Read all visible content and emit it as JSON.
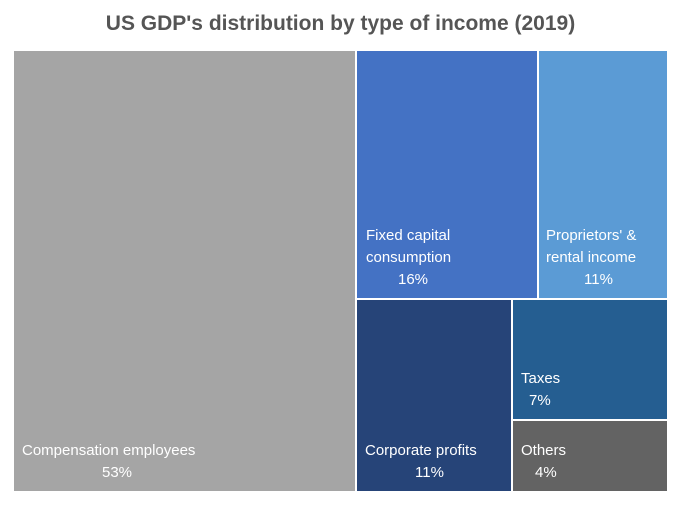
{
  "chart_data": {
    "type": "treemap",
    "title": "US GDP's distribution by type of income (2019)",
    "items": [
      {
        "name_lines": [
          "Compensation employees"
        ],
        "value": 53,
        "label": "53%",
        "color": "#a5a5a5"
      },
      {
        "name_lines": [
          "Fixed capital",
          "consumption"
        ],
        "value": 16,
        "label": "16%",
        "color": "#4472c4"
      },
      {
        "name_lines": [
          "Proprietors' &",
          "rental income"
        ],
        "value": 11,
        "label": "11%",
        "color": "#5b9bd5"
      },
      {
        "name_lines": [
          "Corporate profits"
        ],
        "value": 11,
        "label": "11%",
        "color": "#264478"
      },
      {
        "name_lines": [
          "Taxes"
        ],
        "value": 7,
        "label": "7%",
        "color": "#255e91"
      },
      {
        "name_lines": [
          "Others"
        ],
        "value": 4,
        "label": "4%",
        "color": "#636363"
      }
    ]
  }
}
